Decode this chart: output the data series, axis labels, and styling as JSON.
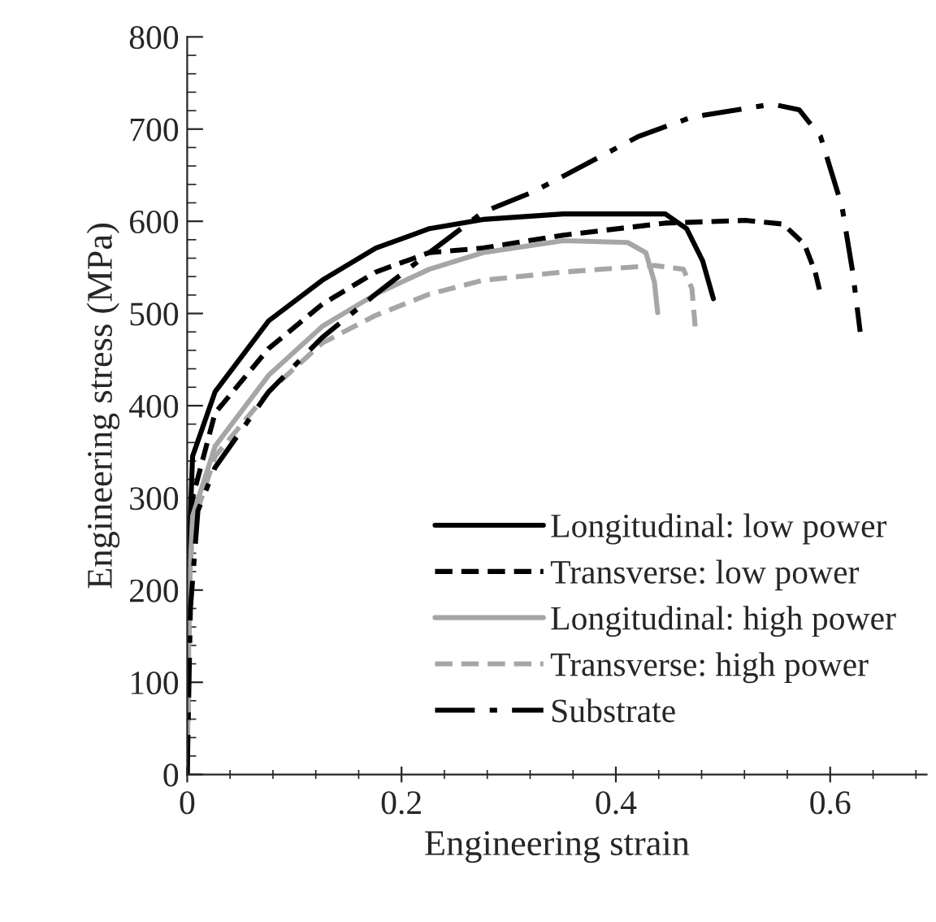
{
  "chart_data": {
    "type": "line",
    "xlabel": "Engineering strain",
    "ylabel": "Engineering stress (MPa)",
    "xlim": [
      0,
      0.69
    ],
    "ylim": [
      0,
      800
    ],
    "xticks": [
      0,
      0.2,
      0.4,
      0.6
    ],
    "yticks": [
      0,
      100,
      200,
      300,
      400,
      500,
      600,
      700,
      800
    ],
    "grid": false,
    "legend": "bottom right",
    "marker": "none",
    "series": [
      {
        "name": "Longitudinal: low power",
        "color": "#000000",
        "line_style": "solid",
        "x": [
          0,
          0.002,
          0.005,
          0.026,
          0.076,
          0.126,
          0.176,
          0.226,
          0.276,
          0.351,
          0.446,
          0.466,
          0.481,
          0.491
        ],
        "values": [
          0,
          250,
          345,
          415,
          492,
          536,
          571,
          592,
          602,
          608,
          608,
          592,
          557,
          516
        ]
      },
      {
        "name": "Transverse: low power",
        "color": "#000000",
        "line_style": "dashed",
        "x": [
          0,
          0.002,
          0.005,
          0.026,
          0.076,
          0.126,
          0.176,
          0.226,
          0.276,
          0.351,
          0.446,
          0.521,
          0.556,
          0.576,
          0.586,
          0.591
        ],
        "values": [
          0,
          220,
          300,
          392,
          462,
          510,
          545,
          566,
          571,
          585,
          598,
          601,
          597,
          575,
          545,
          521
        ]
      },
      {
        "name": "Longitudinal: high power",
        "color": "#a6a6a6",
        "line_style": "solid",
        "x": [
          0,
          0.002,
          0.005,
          0.026,
          0.076,
          0.126,
          0.176,
          0.226,
          0.276,
          0.351,
          0.411,
          0.428,
          0.436,
          0.439
        ],
        "values": [
          0,
          200,
          280,
          356,
          433,
          486,
          521,
          548,
          566,
          579,
          577,
          566,
          534,
          501
        ]
      },
      {
        "name": "Transverse: high power",
        "color": "#a6a6a6",
        "line_style": "dashed",
        "x": [
          0,
          0.002,
          0.005,
          0.026,
          0.076,
          0.126,
          0.176,
          0.226,
          0.276,
          0.351,
          0.436,
          0.463,
          0.471,
          0.474
        ],
        "values": [
          0,
          200,
          270,
          345,
          415,
          468,
          498,
          521,
          536,
          545,
          552,
          548,
          527,
          486
        ]
      },
      {
        "name": "Substrate",
        "color": "#000000",
        "line_style": "dashdot",
        "x": [
          0,
          0.003,
          0.01,
          0.026,
          0.076,
          0.126,
          0.176,
          0.226,
          0.276,
          0.321,
          0.351,
          0.421,
          0.471,
          0.546,
          0.571,
          0.591,
          0.611,
          0.621,
          0.628
        ],
        "values": [
          0,
          180,
          286,
          333,
          415,
          474,
          521,
          566,
          610,
          631,
          649,
          692,
          713,
          727,
          721,
          692,
          616,
          545,
          480
        ]
      }
    ]
  }
}
